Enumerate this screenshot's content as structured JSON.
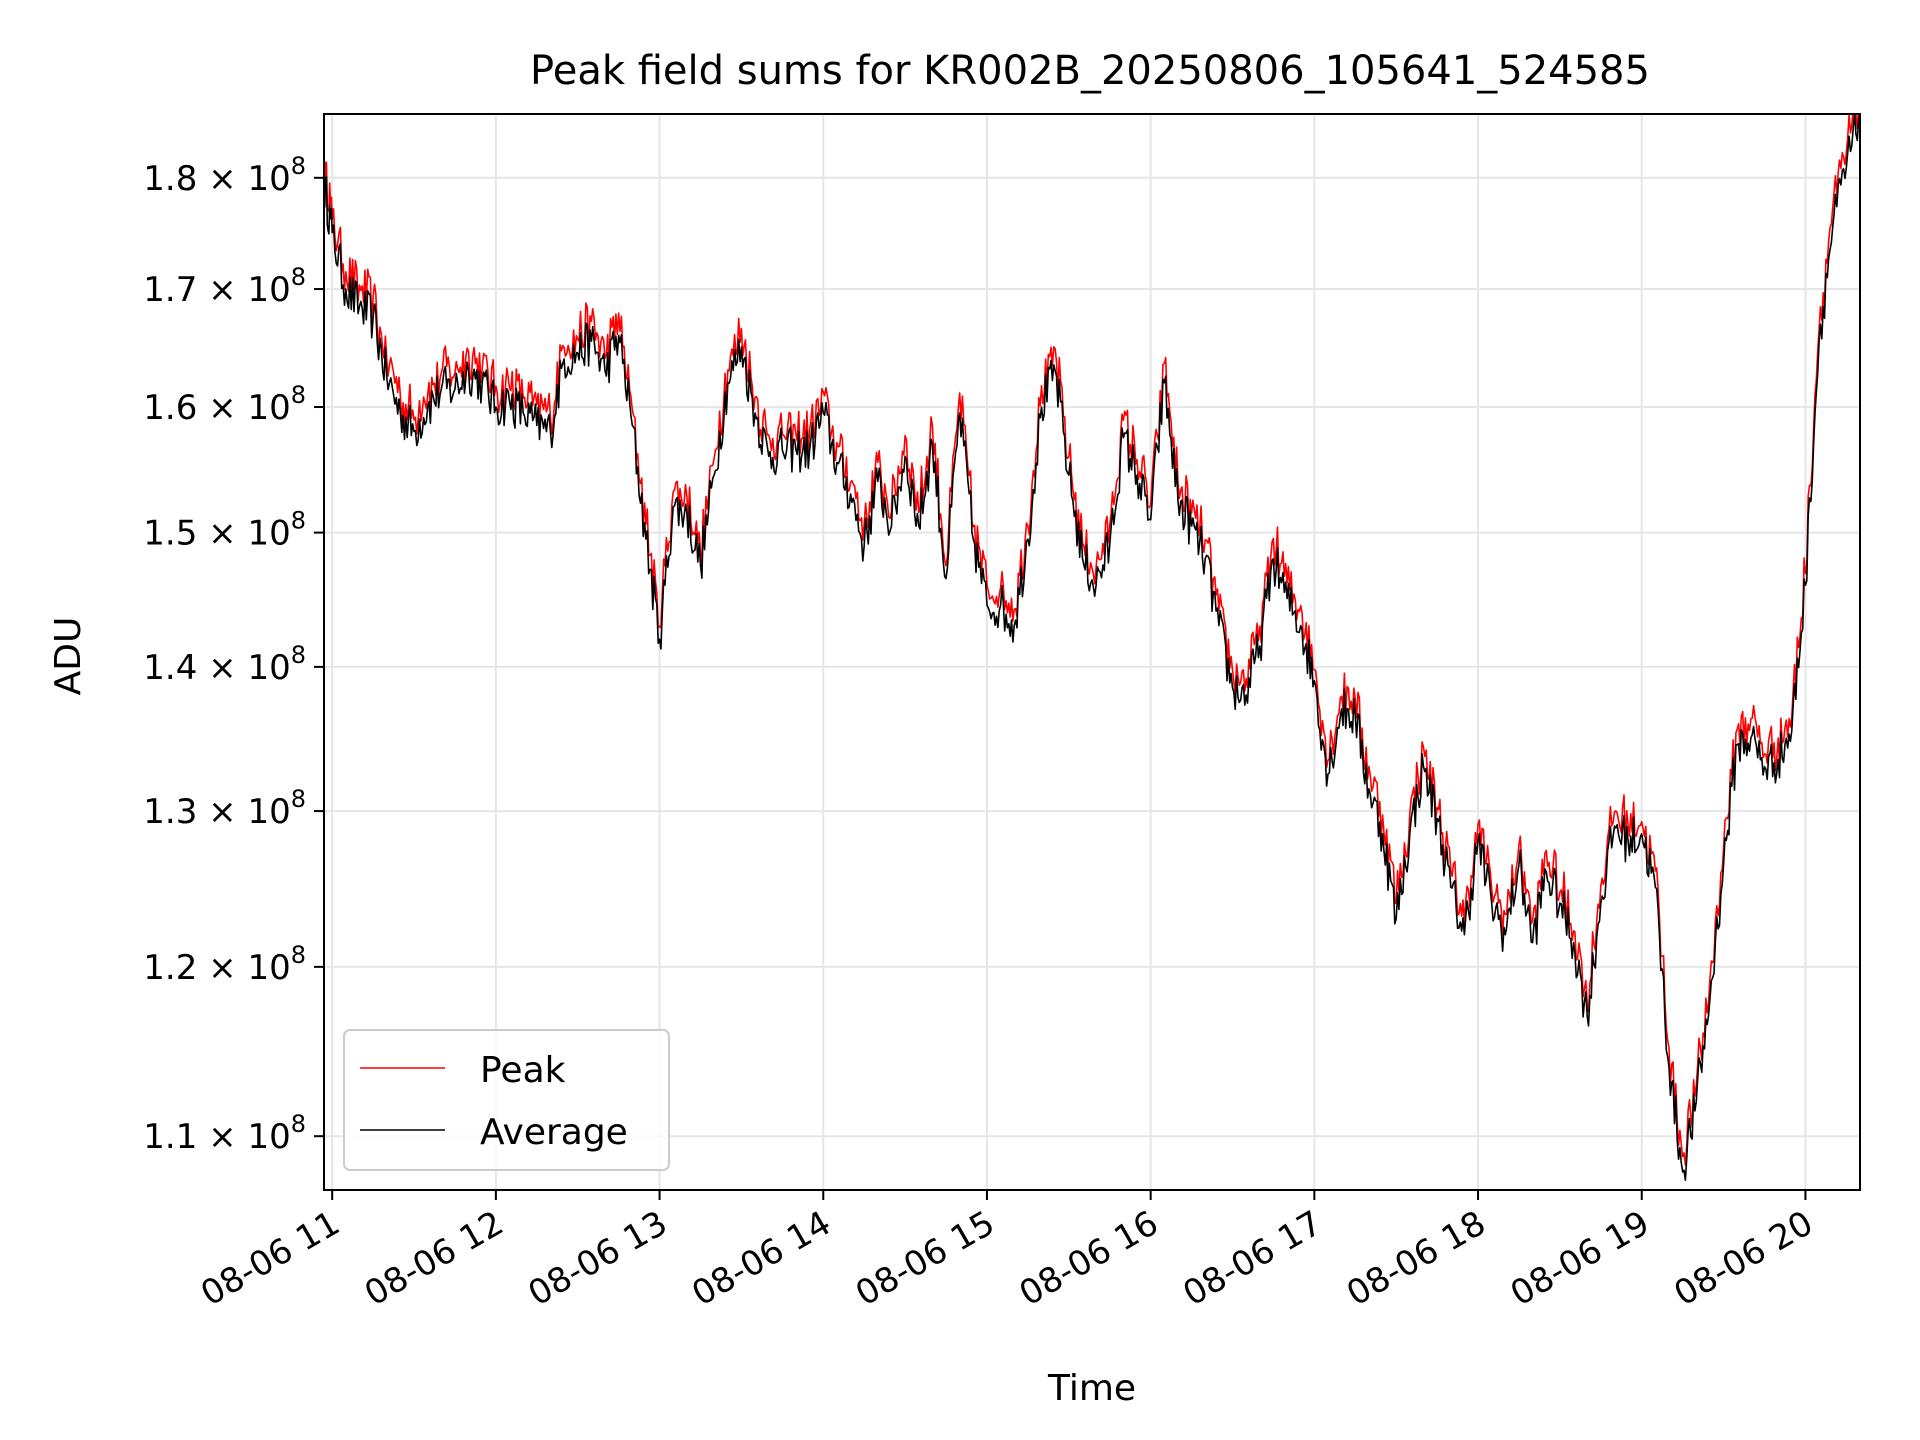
{
  "chart_data": {
    "type": "line",
    "title": "Peak field sums for KR002B_20250806_105641_524585",
    "xlabel": "Time",
    "ylabel": "ADU",
    "yscale": "log",
    "ylim": [
      107000000,
      186000000
    ],
    "xlim": [
      "08-06 10:57",
      "08-06 20:20"
    ],
    "x_ticks": [
      "08-06 11",
      "08-06 12",
      "08-06 13",
      "08-06 14",
      "08-06 15",
      "08-06 16",
      "08-06 17",
      "08-06 18",
      "08-06 19",
      "08-06 20"
    ],
    "y_ticks": [
      {
        "value": 110000000,
        "mantissa": "1.1",
        "base": "10",
        "exp": "8"
      },
      {
        "value": 120000000,
        "mantissa": "1.2",
        "base": "10",
        "exp": "8"
      },
      {
        "value": 130000000,
        "mantissa": "1.3",
        "base": "10",
        "exp": "8"
      },
      {
        "value": 140000000,
        "mantissa": "1.4",
        "base": "10",
        "exp": "8"
      },
      {
        "value": 150000000,
        "mantissa": "1.5",
        "base": "10",
        "exp": "8"
      },
      {
        "value": 160000000,
        "mantissa": "1.6",
        "base": "10",
        "exp": "8"
      },
      {
        "value": 170000000,
        "mantissa": "1.7",
        "base": "10",
        "exp": "8"
      },
      {
        "value": 180000000,
        "mantissa": "1.8",
        "base": "10",
        "exp": "8"
      }
    ],
    "grid": true,
    "legend_position": "lower-left",
    "series": [
      {
        "name": "Peak",
        "color": "#ff0000",
        "x": [
          "08-06 10:57",
          "08-06 11:00",
          "08-06 11:05",
          "08-06 11:10",
          "08-06 11:15",
          "08-06 11:20",
          "08-06 11:25",
          "08-06 11:30",
          "08-06 11:35",
          "08-06 11:40",
          "08-06 11:45",
          "08-06 11:50",
          "08-06 11:55",
          "08-06 12:00",
          "08-06 12:05",
          "08-06 12:10",
          "08-06 12:15",
          "08-06 12:20",
          "08-06 12:25",
          "08-06 12:30",
          "08-06 12:35",
          "08-06 12:40",
          "08-06 12:45",
          "08-06 12:50",
          "08-06 12:55",
          "08-06 13:00",
          "08-06 13:05",
          "08-06 13:10",
          "08-06 13:15",
          "08-06 13:20",
          "08-06 13:25",
          "08-06 13:30",
          "08-06 13:35",
          "08-06 13:40",
          "08-06 13:45",
          "08-06 13:50",
          "08-06 13:55",
          "08-06 14:00",
          "08-06 14:05",
          "08-06 14:10",
          "08-06 14:15",
          "08-06 14:20",
          "08-06 14:25",
          "08-06 14:30",
          "08-06 14:35",
          "08-06 14:40",
          "08-06 14:45",
          "08-06 14:50",
          "08-06 14:55",
          "08-06 15:00",
          "08-06 15:05",
          "08-06 15:10",
          "08-06 15:15",
          "08-06 15:20",
          "08-06 15:25",
          "08-06 15:30",
          "08-06 15:35",
          "08-06 15:40",
          "08-06 15:45",
          "08-06 15:50",
          "08-06 15:55",
          "08-06 16:00",
          "08-06 16:05",
          "08-06 16:10",
          "08-06 16:15",
          "08-06 16:20",
          "08-06 16:25",
          "08-06 16:30",
          "08-06 16:35",
          "08-06 16:40",
          "08-06 16:45",
          "08-06 16:50",
          "08-06 16:55",
          "08-06 17:00",
          "08-06 17:05",
          "08-06 17:10",
          "08-06 17:15",
          "08-06 17:20",
          "08-06 17:25",
          "08-06 17:30",
          "08-06 17:35",
          "08-06 17:40",
          "08-06 17:45",
          "08-06 17:50",
          "08-06 17:55",
          "08-06 18:00",
          "08-06 18:05",
          "08-06 18:10",
          "08-06 18:15",
          "08-06 18:20",
          "08-06 18:25",
          "08-06 18:30",
          "08-06 18:35",
          "08-06 18:40",
          "08-06 18:45",
          "08-06 18:50",
          "08-06 18:55",
          "08-06 19:00",
          "08-06 19:05",
          "08-06 19:10",
          "08-06 19:15",
          "08-06 19:20",
          "08-06 19:25",
          "08-06 19:30",
          "08-06 19:35",
          "08-06 19:40",
          "08-06 19:45",
          "08-06 19:50",
          "08-06 19:55",
          "08-06 20:00",
          "08-06 20:05",
          "08-06 20:10",
          "08-06 20:15",
          "08-06 20:20"
        ],
        "values": [
          180500000,
          176000000,
          170500000,
          169000000,
          168000000,
          163000000,
          160000000,
          158500000,
          160500000,
          162000000,
          162000000,
          163500000,
          162500000,
          160500000,
          161000000,
          160000000,
          159000000,
          158500000,
          164500000,
          165000000,
          166000000,
          163500000,
          166500000,
          159000000,
          150000000,
          142500000,
          152500000,
          152000000,
          148000000,
          155000000,
          162500000,
          165500000,
          160000000,
          156500000,
          157000000,
          157000000,
          157000000,
          160000000,
          156000000,
          153500000,
          149500000,
          154500000,
          151000000,
          156500000,
          151000000,
          157500000,
          147000000,
          160000000,
          150000000,
          145000000,
          145000000,
          143500000,
          150000000,
          160500000,
          163500000,
          155000000,
          148500000,
          146500000,
          149500000,
          158000000,
          155000000,
          151500000,
          162500000,
          153000000,
          151000000,
          148500000,
          143500000,
          139000000,
          138500000,
          142000000,
          148500000,
          145500000,
          143500000,
          139500000,
          133000000,
          137500000,
          137000000,
          132000000,
          129000000,
          123500000,
          129000000,
          133500000,
          130000000,
          125500000,
          122500000,
          128500000,
          124500000,
          122500000,
          127000000,
          122000000,
          126500000,
          124500000,
          122000000,
          117500000,
          124500000,
          129500000,
          128500000,
          129000000,
          125500000,
          114500000,
          108500000,
          112500000,
          118500000,
          127000000,
          135000000,
          135500000,
          133500000,
          134000000,
          136000000,
          146500000,
          166000000,
          176000000,
          181500000,
          186500000
        ]
      },
      {
        "name": "Average",
        "color": "#000000",
        "x": [
          "08-06 10:57",
          "08-06 11:00",
          "08-06 11:05",
          "08-06 11:10",
          "08-06 11:15",
          "08-06 11:20",
          "08-06 11:25",
          "08-06 11:30",
          "08-06 11:35",
          "08-06 11:40",
          "08-06 11:45",
          "08-06 11:50",
          "08-06 11:55",
          "08-06 12:00",
          "08-06 12:05",
          "08-06 12:10",
          "08-06 12:15",
          "08-06 12:20",
          "08-06 12:25",
          "08-06 12:30",
          "08-06 12:35",
          "08-06 12:40",
          "08-06 12:45",
          "08-06 12:50",
          "08-06 12:55",
          "08-06 13:00",
          "08-06 13:05",
          "08-06 13:10",
          "08-06 13:15",
          "08-06 13:20",
          "08-06 13:25",
          "08-06 13:30",
          "08-06 13:35",
          "08-06 13:40",
          "08-06 13:45",
          "08-06 13:50",
          "08-06 13:55",
          "08-06 14:00",
          "08-06 14:05",
          "08-06 14:10",
          "08-06 14:15",
          "08-06 14:20",
          "08-06 14:25",
          "08-06 14:30",
          "08-06 14:35",
          "08-06 14:40",
          "08-06 14:45",
          "08-06 14:50",
          "08-06 14:55",
          "08-06 15:00",
          "08-06 15:05",
          "08-06 15:10",
          "08-06 15:15",
          "08-06 15:20",
          "08-06 15:25",
          "08-06 15:30",
          "08-06 15:35",
          "08-06 15:40",
          "08-06 15:45",
          "08-06 15:50",
          "08-06 15:55",
          "08-06 16:00",
          "08-06 16:05",
          "08-06 16:10",
          "08-06 16:15",
          "08-06 16:20",
          "08-06 16:25",
          "08-06 16:30",
          "08-06 16:35",
          "08-06 16:40",
          "08-06 16:45",
          "08-06 16:50",
          "08-06 16:55",
          "08-06 17:00",
          "08-06 17:05",
          "08-06 17:10",
          "08-06 17:15",
          "08-06 17:20",
          "08-06 17:25",
          "08-06 17:30",
          "08-06 17:35",
          "08-06 17:40",
          "08-06 17:45",
          "08-06 17:50",
          "08-06 17:55",
          "08-06 18:00",
          "08-06 18:05",
          "08-06 18:10",
          "08-06 18:15",
          "08-06 18:20",
          "08-06 18:25",
          "08-06 18:30",
          "08-06 18:35",
          "08-06 18:40",
          "08-06 18:45",
          "08-06 18:50",
          "08-06 18:55",
          "08-06 19:00",
          "08-06 19:05",
          "08-06 19:10",
          "08-06 19:15",
          "08-06 19:20",
          "08-06 19:25",
          "08-06 19:30",
          "08-06 19:35",
          "08-06 19:40",
          "08-06 19:45",
          "08-06 19:50",
          "08-06 19:55",
          "08-06 20:00",
          "08-06 20:05",
          "08-06 20:10",
          "08-06 20:15",
          "08-06 20:20"
        ],
        "values": [
          179500000,
          175000000,
          170000000,
          168500000,
          167500000,
          162500000,
          159500000,
          158000000,
          160000000,
          161500000,
          161500000,
          163000000,
          162000000,
          160000000,
          160500000,
          159500000,
          158500000,
          158000000,
          164000000,
          164500000,
          165500000,
          163000000,
          166000000,
          158500000,
          149500000,
          142000000,
          152000000,
          151500000,
          147500000,
          154500000,
          162000000,
          165000000,
          159500000,
          156000000,
          156500000,
          156500000,
          156500000,
          159500000,
          155500000,
          153000000,
          149000000,
          154000000,
          150500000,
          156000000,
          150500000,
          157000000,
          146500000,
          159500000,
          149500000,
          144500000,
          144500000,
          143000000,
          149500000,
          160000000,
          163000000,
          154500000,
          148000000,
          146000000,
          149000000,
          157500000,
          154500000,
          151000000,
          162000000,
          152500000,
          150500000,
          148000000,
          143000000,
          138500000,
          138000000,
          141500000,
          148000000,
          145000000,
          143000000,
          139000000,
          132500000,
          137000000,
          136500000,
          131500000,
          128500000,
          123000000,
          128500000,
          133000000,
          129500000,
          125000000,
          122000000,
          128000000,
          124000000,
          122000000,
          126500000,
          121500000,
          126000000,
          124000000,
          121500000,
          117000000,
          124000000,
          129000000,
          128000000,
          128500000,
          125000000,
          114000000,
          108000000,
          112000000,
          118000000,
          126500000,
          134500000,
          135000000,
          133000000,
          133500000,
          135500000,
          146000000,
          165500000,
          175500000,
          181000000,
          186000000
        ]
      }
    ]
  }
}
